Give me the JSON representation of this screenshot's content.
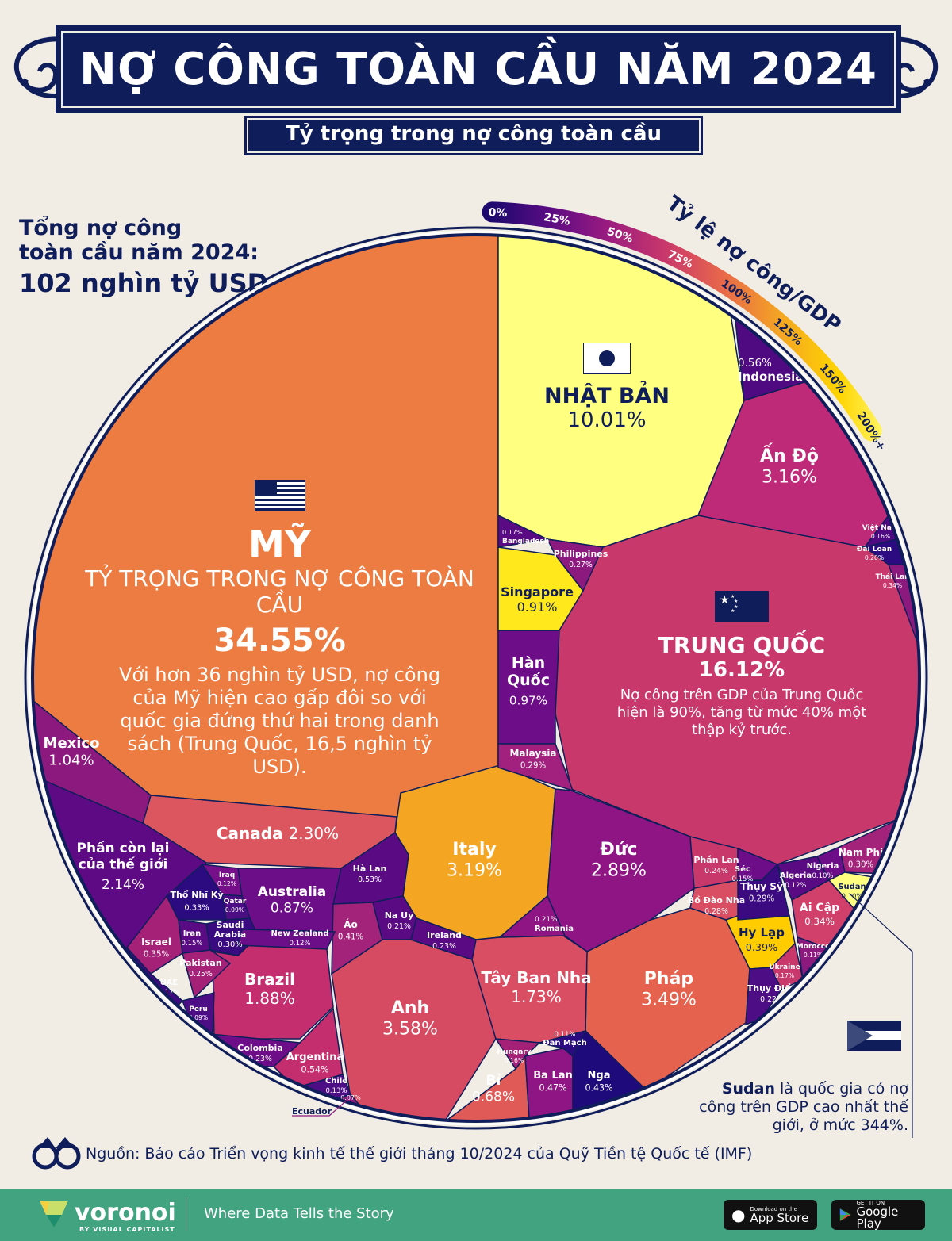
{
  "header": {
    "title": "NỢ CÔNG TOÀN CẦU NĂM 2024",
    "subtitle": "Tỷ trọng trong nợ công toàn cầu"
  },
  "total": {
    "label_line1": "Tổng nợ công",
    "label_line2": "toàn cầu năm 2024:",
    "value": "102 nghìn tỷ USD"
  },
  "scale": {
    "title": "Tỷ lệ nợ công/GDP",
    "ticks": [
      "0%",
      "25%",
      "50%",
      "75%",
      "100%",
      "125%",
      "150%",
      "200%+"
    ],
    "colors": [
      "#1E0A6E",
      "#5A0B83",
      "#9A1B80",
      "#C9386B",
      "#E8684A",
      "#F4A623",
      "#FFD400",
      "#FFFF80"
    ]
  },
  "highlights": {
    "us": {
      "name": "MỸ",
      "caption": "TỶ TRỌNG TRONG NỢ CÔNG TOÀN CẦU",
      "pct": "34.55%",
      "desc": "Với hơn 36 nghìn tỷ USD, nợ công của Mỹ hiện cao gấp đôi so với quốc gia đứng thứ hai trong danh sách (Trung Quốc, 16,5 nghìn tỷ USD)."
    },
    "china": {
      "name": "TRUNG QUỐC",
      "pct": "16.12%",
      "desc": "Nợ công trên GDP của Trung Quốc hiện là 90%, tăng từ mức 40% một thập kỷ trước."
    },
    "japan": {
      "name": "NHẬT BẢN",
      "pct": "10.01%"
    }
  },
  "chart_data": {
    "type": "treemap",
    "shape": "voronoi-circle",
    "unit": "% nợ công toàn cầu",
    "color_encodes": "Tỷ lệ nợ công/GDP",
    "cells": [
      {
        "name": "Mỹ",
        "value": 34.55,
        "color": "#EC7C41"
      },
      {
        "name": "Trung Quốc",
        "value": 16.12,
        "color": "#C9386B"
      },
      {
        "name": "Nhật Bản",
        "value": 10.01,
        "color": "#FFFF80"
      },
      {
        "name": "Anh",
        "value": 3.58,
        "color": "#D74B62"
      },
      {
        "name": "Pháp",
        "value": 3.49,
        "color": "#E4624E"
      },
      {
        "name": "Italy",
        "value": 3.19,
        "color": "#F4A623"
      },
      {
        "name": "Ấn Độ",
        "value": 3.16,
        "color": "#BF2A78"
      },
      {
        "name": "Đức",
        "value": 2.89,
        "color": "#8E1583"
      },
      {
        "name": "Canada",
        "value": 2.3,
        "color": "#DC5660"
      },
      {
        "name": "Phần còn lại của thế giới",
        "value": 2.14,
        "color": "#5E0A85"
      },
      {
        "name": "Brazil",
        "value": 1.88,
        "color": "#C42E6E"
      },
      {
        "name": "Tây Ban Nha",
        "value": 1.73,
        "color": "#D94E63"
      },
      {
        "name": "Mexico",
        "value": 1.04,
        "color": "#8C1A7E"
      },
      {
        "name": "Hàn Quốc",
        "value": 0.97,
        "color": "#6D0E88"
      },
      {
        "name": "Singapore",
        "value": 0.91,
        "color": "#FFE81C"
      },
      {
        "name": "Australia",
        "value": 0.87,
        "color": "#6C0E88"
      },
      {
        "name": "Bỉ",
        "value": 0.68,
        "color": "#E05A58"
      },
      {
        "name": "Indonesia",
        "value": 0.56,
        "color": "#4F0A82"
      },
      {
        "name": "Argentina",
        "value": 0.54,
        "color": "#C42E6E"
      },
      {
        "name": "Hà Lan",
        "value": 0.53,
        "color": "#5A0B83"
      },
      {
        "name": "Ba Lan",
        "value": 0.47,
        "color": "#8E1583"
      },
      {
        "name": "Nga",
        "value": 0.43,
        "color": "#1E0A7A"
      },
      {
        "name": "Áo",
        "value": 0.41,
        "color": "#A3237A"
      },
      {
        "name": "Hy Lạp",
        "value": 0.39,
        "color": "#FFCC00"
      },
      {
        "name": "Israel",
        "value": 0.35,
        "color": "#A52077"
      },
      {
        "name": "Ai Cập",
        "value": 0.34,
        "color": "#D1406B"
      },
      {
        "name": "Thái Lan",
        "value": 0.34,
        "color": "#8C1A7E"
      },
      {
        "name": "Thổ Nhĩ Kỳ",
        "value": 0.33,
        "color": "#2C0A80"
      },
      {
        "name": "Saudi Arabia",
        "value": 0.3,
        "color": "#3A0A80"
      },
      {
        "name": "Nam Phi",
        "value": 0.3,
        "color": "#A3237A"
      },
      {
        "name": "Malaysia",
        "value": 0.29,
        "color": "#A2207E"
      },
      {
        "name": "Thụy Sỹ",
        "value": 0.29,
        "color": "#3B0A80"
      },
      {
        "name": "Bồ Đào Nha",
        "value": 0.28,
        "color": "#D94E63"
      },
      {
        "name": "Philippines",
        "value": 0.27,
        "color": "#8C1A7E"
      },
      {
        "name": "Pakistan",
        "value": 0.25,
        "color": "#A52077"
      },
      {
        "name": "Phần Lan",
        "value": 0.24,
        "color": "#C9386B"
      },
      {
        "name": "Colombia",
        "value": 0.23,
        "color": "#6D0E88"
      },
      {
        "name": "Ireland",
        "value": 0.23,
        "color": "#5A0B83"
      },
      {
        "name": "Thụy Điển",
        "value": 0.22,
        "color": "#4D0E85"
      },
      {
        "name": "Na Uy",
        "value": 0.21,
        "color": "#5A0B83"
      },
      {
        "name": "Romania",
        "value": 0.21,
        "color": "#8E1583"
      },
      {
        "name": "Đài Loan",
        "value": 0.2,
        "color": "#2C0A80"
      },
      {
        "name": "Bangladesh",
        "value": 0.17,
        "color": "#5A0B83"
      },
      {
        "name": "UAE",
        "value": 0.17,
        "color": "#3E0A80"
      },
      {
        "name": "Ukraine",
        "value": 0.17,
        "color": "#C9386B"
      },
      {
        "name": "Việt Nam",
        "value": 0.16,
        "color": "#4F0A82"
      },
      {
        "name": "Hungary",
        "value": 0.16,
        "color": "#A52077"
      },
      {
        "name": "Iran",
        "value": 0.15,
        "color": "#5A0B83"
      },
      {
        "name": "Séc",
        "value": 0.15,
        "color": "#6D0E88"
      },
      {
        "name": "Chile",
        "value": 0.13,
        "color": "#4D0E85"
      },
      {
        "name": "Iraq",
        "value": 0.12,
        "color": "#780F8A"
      },
      {
        "name": "New Zealand",
        "value": 0.12,
        "color": "#6C0E88"
      },
      {
        "name": "Algeria",
        "value": 0.12,
        "color": "#5A0B83"
      },
      {
        "name": "Đan Mạch",
        "value": 0.11,
        "color": "#2C0A80"
      },
      {
        "name": "Morocco",
        "value": 0.11,
        "color": "#8C1A7E"
      },
      {
        "name": "Nigeria",
        "value": 0.1,
        "color": "#6D0E88"
      },
      {
        "name": "Sudan",
        "value": 0.1,
        "color": "#FFFF80"
      },
      {
        "name": "Qatar",
        "value": 0.09,
        "color": "#4D0E85"
      },
      {
        "name": "Peru",
        "value": 0.09,
        "color": "#4D0E85"
      },
      {
        "name": "Ecuador",
        "value": 0.07,
        "color": "#8C1A7E"
      }
    ]
  },
  "callouts": {
    "ecuador": "Ecuador",
    "sudan_bold": "Sudan",
    "sudan_text": " là quốc gia có nợ công trên GDP cao nhất thế giới, ở mức 344%."
  },
  "source": "Nguồn: Báo cáo Triển vọng kinh tế thế giới tháng 10/2024 của Quỹ Tiền tệ Quốc tế (IMF)",
  "footer": {
    "brand": "voronoi",
    "brand_sub": "BY VISUAL CAPITALIST",
    "tagline": "Where Data Tells the Story",
    "appstore_small": "Download on the",
    "appstore_big": "App Store",
    "googleplay_small": "GET IT ON",
    "googleplay_big": "Google Play"
  }
}
